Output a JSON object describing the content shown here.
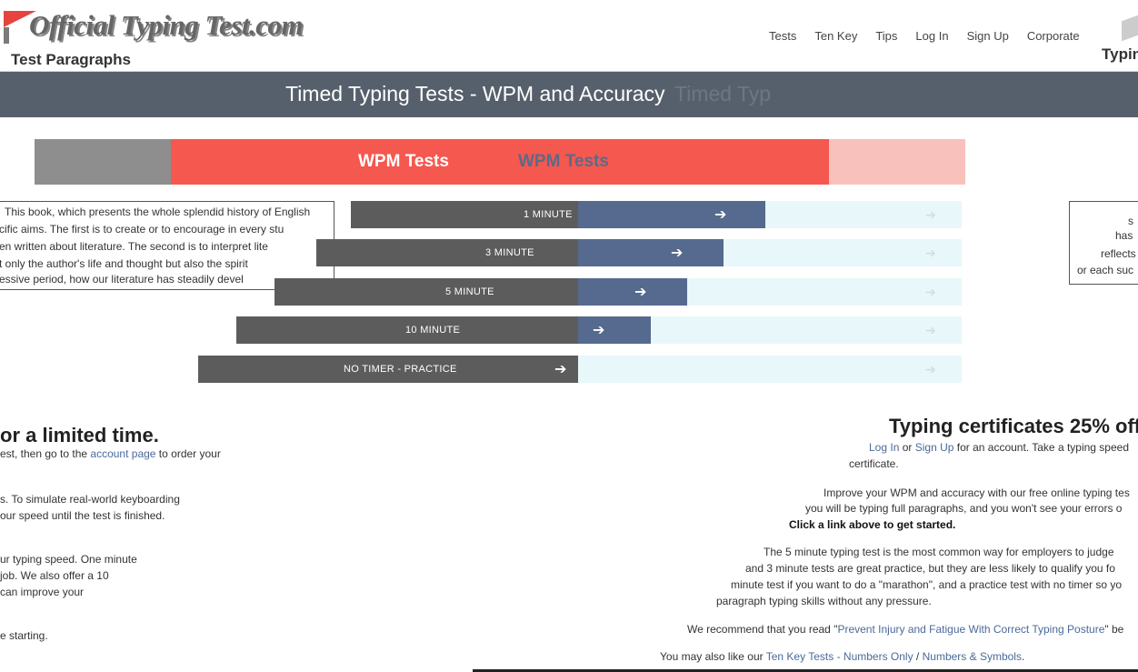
{
  "header": {
    "site_title": "Official Typing Test.com",
    "sub_left": "Test Paragraphs",
    "sub_right": "Typing",
    "nav": [
      "Tests",
      "Ten Key",
      "Tips",
      "Log In",
      "Sign Up",
      "Corporate"
    ]
  },
  "banner": {
    "title": "Timed Typing Tests - WPM and Accuracy",
    "ghost": "Timed Typ"
  },
  "tabs": {
    "active_label": "WPM Tests",
    "ghost_label": "WPM Tests"
  },
  "tests": [
    {
      "label": "1 MINUTE"
    },
    {
      "label": "3 MINUTE"
    },
    {
      "label": "5 MINUTE"
    },
    {
      "label": "10 MINUTE"
    },
    {
      "label": "NO TIMER - PRACTICE"
    }
  ],
  "sample_paragraph": {
    "lines": [
      "This book, which presents the whole splendid history of English",
      "cific aims. The first is to create or to encourage in every stu",
      "en written about literature. The second is to interpret lite",
      "t only the author's life and thought but also the spirit",
      "essive period, how our literature has steadily devel"
    ]
  },
  "right_box": {
    "lines": [
      "s",
      "has",
      "reflects",
      "or each suc"
    ]
  },
  "certificates": {
    "heading": "Typing certificates 25% off f",
    "line1_pre": "Log In",
    "line1_or": " or ",
    "line1_signup": "Sign Up",
    "line1_post": " for an account. Take a typing speed",
    "line2": "certificate."
  },
  "intro": {
    "p1_l1": "Improve your WPM and accuracy with our free online typing tes",
    "p1_l2": "you will be typing full paragraphs, and you won't see your errors o",
    "p1_l3": "Click a link above to get started.",
    "p2_l1": "The 5 minute typing test is the most common way for employers to judge",
    "p2_l2": "and 3 minute tests are great practice, but they are less likely to qualify you fo",
    "p2_l3": "minute test if you want to do a \"marathon\", and a practice test with no timer so yo",
    "p2_l4": "paragraph typing skills without any pressure.",
    "p3_pre": "We recommend that you read \"",
    "p3_link": "Prevent Injury and Fatigue With Correct Typing Posture",
    "p3_post": "\" be",
    "p4_pre": "You may also like our ",
    "p4_link1": "Ten Key Tests - Numbers Only",
    "p4_sep": " / ",
    "p4_link2": "Numbers & Symbols",
    "p4_post": "."
  },
  "left_column": {
    "heading": "or a limited time.",
    "l1_pre": "est, then go to the ",
    "l1_link": "account page",
    "l1_post": " to order your",
    "l2": "s. To simulate real-world keyboarding",
    "l3": "our speed until the test is finished.",
    "l4": "ur typing speed. One minute",
    "l5": "job. We also offer a 10",
    "l6": "can improve your",
    "l7": "e starting."
  }
}
